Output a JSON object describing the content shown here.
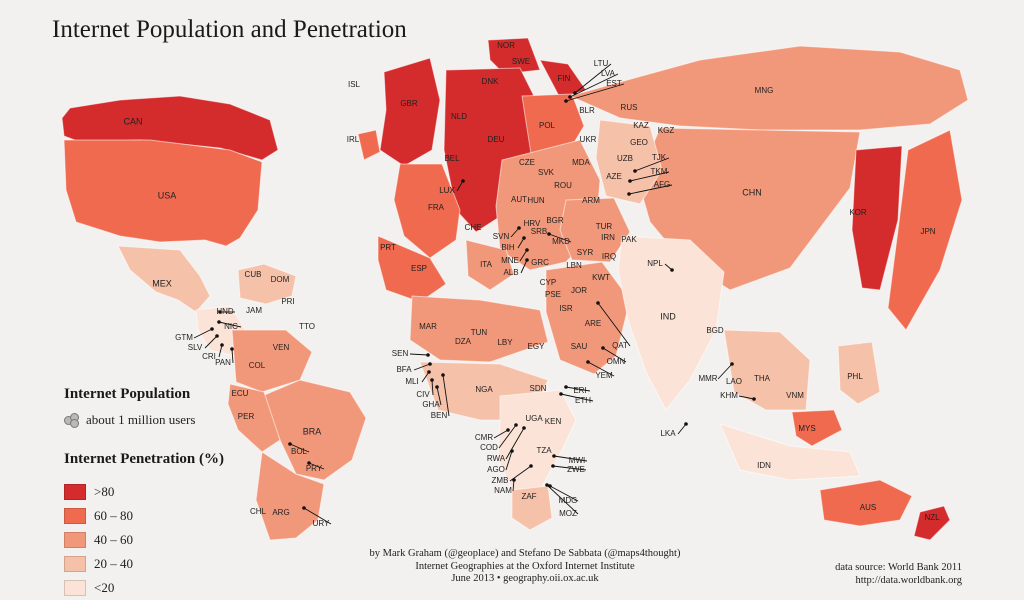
{
  "title": "Internet Population and Penetration",
  "legend": {
    "population_title": "Internet Population",
    "population_item": "about 1 million users",
    "penetration_title": "Internet Penetration (%)",
    "classes": [
      {
        "label": ">80",
        "color": "#d42c2c"
      },
      {
        "label": "60 – 80",
        "color": "#ef6a4f"
      },
      {
        "label": "40 – 60",
        "color": "#f2987a"
      },
      {
        "label": "20 – 40",
        "color": "#f6c1a9"
      },
      {
        "label": "<20",
        "color": "#fbe3d7"
      }
    ]
  },
  "credits": {
    "line1": "by Mark Graham (@geoplace) and Stefano De Sabbata (@maps4thought)",
    "line2": "Internet Geographies at the Oxford Internet Institute",
    "line3": "June 2013 • geography.oii.ox.ac.uk"
  },
  "source": {
    "line1": "data source: World Bank 2011",
    "line2": "http://data.worldbank.org"
  },
  "countries": [
    {
      "code": "CAN",
      "class": 0
    },
    {
      "code": "USA",
      "class": 1
    },
    {
      "code": "MEX",
      "class": 3
    },
    {
      "code": "CUB",
      "class": 4
    },
    {
      "code": "DOM",
      "class": 3
    },
    {
      "code": "PRI",
      "class": 2
    },
    {
      "code": "JAM",
      "class": 2
    },
    {
      "code": "TTO",
      "class": 2
    },
    {
      "code": "HND",
      "class": 4
    },
    {
      "code": "NIC",
      "class": 4
    },
    {
      "code": "GTM",
      "class": 4
    },
    {
      "code": "SLV",
      "class": 3
    },
    {
      "code": "CRI",
      "class": 2
    },
    {
      "code": "PAN",
      "class": 2
    },
    {
      "code": "VEN",
      "class": 2
    },
    {
      "code": "COL",
      "class": 2
    },
    {
      "code": "ECU",
      "class": 2
    },
    {
      "code": "PER",
      "class": 2
    },
    {
      "code": "BRA",
      "class": 2
    },
    {
      "code": "BOL",
      "class": 3
    },
    {
      "code": "PRY",
      "class": 3
    },
    {
      "code": "CHL",
      "class": 2
    },
    {
      "code": "ARG",
      "class": 2
    },
    {
      "code": "URY",
      "class": 2
    },
    {
      "code": "ISL",
      "class": 0
    },
    {
      "code": "IRL",
      "class": 1
    },
    {
      "code": "GBR",
      "class": 0
    },
    {
      "code": "NOR",
      "class": 0
    },
    {
      "code": "SWE",
      "class": 0
    },
    {
      "code": "DNK",
      "class": 0
    },
    {
      "code": "FIN",
      "class": 0
    },
    {
      "code": "EST",
      "class": 1
    },
    {
      "code": "LVA",
      "class": 1
    },
    {
      "code": "LTU",
      "class": 1
    },
    {
      "code": "NLD",
      "class": 0
    },
    {
      "code": "DEU",
      "class": 0
    },
    {
      "code": "POL",
      "class": 1
    },
    {
      "code": "BLR",
      "class": 2
    },
    {
      "code": "RUS",
      "class": 2
    },
    {
      "code": "BEL",
      "class": 0
    },
    {
      "code": "LUX",
      "class": 0
    },
    {
      "code": "FRA",
      "class": 1
    },
    {
      "code": "CHE",
      "class": 0
    },
    {
      "code": "AUT",
      "class": 1
    },
    {
      "code": "CZE",
      "class": 1
    },
    {
      "code": "SVK",
      "class": 1
    },
    {
      "code": "HUN",
      "class": 1
    },
    {
      "code": "UKR",
      "class": 3
    },
    {
      "code": "MDA",
      "class": 2
    },
    {
      "code": "ROU",
      "class": 2
    },
    {
      "code": "BGR",
      "class": 2
    },
    {
      "code": "SVN",
      "class": 1
    },
    {
      "code": "HRV",
      "class": 1
    },
    {
      "code": "BIH",
      "class": 2
    },
    {
      "code": "SRB",
      "class": 2
    },
    {
      "code": "MNE",
      "class": 2
    },
    {
      "code": "MKD",
      "class": 2
    },
    {
      "code": "ALB",
      "class": 2
    },
    {
      "code": "GRC",
      "class": 2
    },
    {
      "code": "ITA",
      "class": 2
    },
    {
      "code": "ESP",
      "class": 1
    },
    {
      "code": "PRT",
      "class": 1
    },
    {
      "code": "TUR",
      "class": 2
    },
    {
      "code": "GEO",
      "class": 3
    },
    {
      "code": "ARM",
      "class": 3
    },
    {
      "code": "AZE",
      "class": 2
    },
    {
      "code": "KAZ",
      "class": 2
    },
    {
      "code": "KGZ",
      "class": 3
    },
    {
      "code": "UZB",
      "class": 3
    },
    {
      "code": "TJK",
      "class": 4
    },
    {
      "code": "TKM",
      "class": 4
    },
    {
      "code": "AFG",
      "class": 4
    },
    {
      "code": "IRN",
      "class": 3
    },
    {
      "code": "IRQ",
      "class": 4
    },
    {
      "code": "SYR",
      "class": 3
    },
    {
      "code": "LBN",
      "class": 2
    },
    {
      "code": "CYP",
      "class": 1
    },
    {
      "code": "PSE",
      "class": 2
    },
    {
      "code": "ISR",
      "class": 1
    },
    {
      "code": "JOR",
      "class": 2
    },
    {
      "code": "KWT",
      "class": 1
    },
    {
      "code": "SAU",
      "class": 2
    },
    {
      "code": "ARE",
      "class": 0
    },
    {
      "code": "QAT",
      "class": 0
    },
    {
      "code": "OMN",
      "class": 1
    },
    {
      "code": "YEM",
      "class": 4
    },
    {
      "code": "PAK",
      "class": 4
    },
    {
      "code": "IND",
      "class": 4
    },
    {
      "code": "NPL",
      "class": 4
    },
    {
      "code": "BGD",
      "class": 4
    },
    {
      "code": "LKA",
      "class": 4
    },
    {
      "code": "CHN",
      "class": 2
    },
    {
      "code": "MNG",
      "class": 3
    },
    {
      "code": "KOR",
      "class": 0
    },
    {
      "code": "JPN",
      "class": 1
    },
    {
      "code": "MMR",
      "class": 4
    },
    {
      "code": "THA",
      "class": 3
    },
    {
      "code": "LAO",
      "class": 4
    },
    {
      "code": "VNM",
      "class": 2
    },
    {
      "code": "KHM",
      "class": 4
    },
    {
      "code": "MYS",
      "class": 1
    },
    {
      "code": "PHL",
      "class": 3
    },
    {
      "code": "IDN",
      "class": 4
    },
    {
      "code": "AUS",
      "class": 1
    },
    {
      "code": "NZL",
      "class": 0
    },
    {
      "code": "MAR",
      "class": 2
    },
    {
      "code": "DZA",
      "class": 4
    },
    {
      "code": "TUN",
      "class": 2
    },
    {
      "code": "LBY",
      "class": 4
    },
    {
      "code": "EGY",
      "class": 3
    },
    {
      "code": "SEN",
      "class": 4
    },
    {
      "code": "BFA",
      "class": 4
    },
    {
      "code": "MLI",
      "class": 4
    },
    {
      "code": "CIV",
      "class": 4
    },
    {
      "code": "GHA",
      "class": 4
    },
    {
      "code": "BEN",
      "class": 4
    },
    {
      "code": "NGA",
      "class": 3
    },
    {
      "code": "SDN",
      "class": 4
    },
    {
      "code": "ERI",
      "class": 4
    },
    {
      "code": "ETH",
      "class": 4
    },
    {
      "code": "UGA",
      "class": 4
    },
    {
      "code": "KEN",
      "class": 3
    },
    {
      "code": "CMR",
      "class": 4
    },
    {
      "code": "COD",
      "class": 4
    },
    {
      "code": "RWA",
      "class": 4
    },
    {
      "code": "TZA",
      "class": 4
    },
    {
      "code": "MWI",
      "class": 4
    },
    {
      "code": "AGO",
      "class": 4
    },
    {
      "code": "ZMB",
      "class": 4
    },
    {
      "code": "ZWE",
      "class": 4
    },
    {
      "code": "NAM",
      "class": 4
    },
    {
      "code": "ZAF",
      "class": 3
    },
    {
      "code": "MDG",
      "class": 4
    },
    {
      "code": "MOZ",
      "class": 4
    }
  ]
}
